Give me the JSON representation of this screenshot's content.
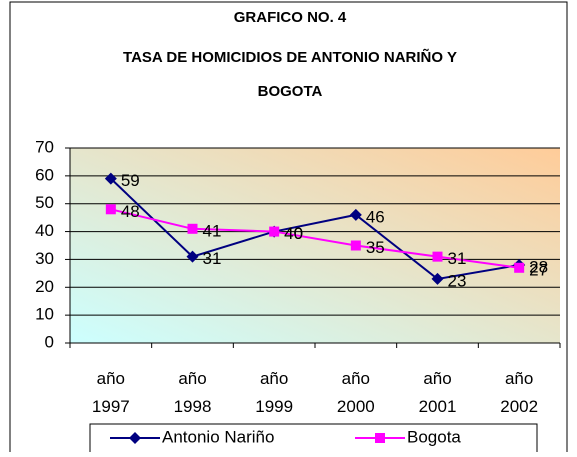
{
  "chart_data": {
    "type": "line",
    "title": [
      "GRAFICO NO. 4",
      "TASA DE HOMICIDIOS DE ANTONIO NARIÑO Y",
      "BOGOTA"
    ],
    "categories": [
      "año 1997",
      "año 1998",
      "año 1999",
      "año 2000",
      "año 2001",
      "año 2002"
    ],
    "series": [
      {
        "name": "Antonio Nariño",
        "color": "#000080",
        "marker": "diamond",
        "values": [
          59,
          31,
          40,
          46,
          23,
          28
        ]
      },
      {
        "name": "Bogota",
        "color": "#ff00ff",
        "marker": "square",
        "values": [
          48,
          41,
          40,
          35,
          31,
          27
        ]
      }
    ],
    "ylim": [
      0,
      70
    ],
    "yticks": [
      0,
      10,
      20,
      30,
      40,
      50,
      60,
      70
    ],
    "grid": true,
    "legend": "bottom"
  }
}
